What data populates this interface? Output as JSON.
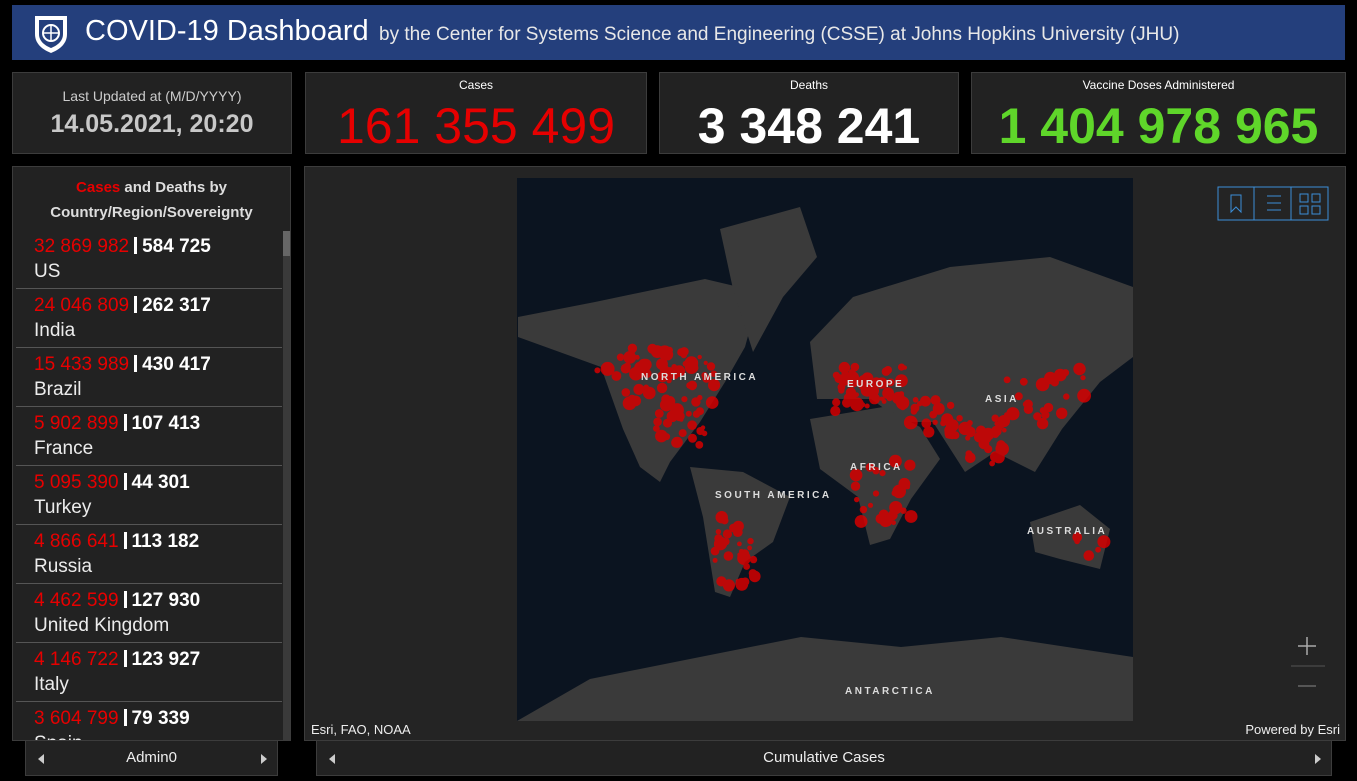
{
  "header": {
    "title": "COVID-19 Dashboard",
    "subtitle": "by the Center for Systems Science and Engineering (CSSE) at Johns Hopkins University (JHU)"
  },
  "updated": {
    "label": "Last Updated at (M/D/YYYY)",
    "value": "14.05.2021, 20:20"
  },
  "stats": {
    "cases": {
      "label": "Cases",
      "value": "161 355 499"
    },
    "deaths": {
      "label": "Deaths",
      "value": "3 348 241"
    },
    "vaccines": {
      "label": "Vaccine Doses Administered",
      "value": "1 404 978 965"
    }
  },
  "list": {
    "title_cases": "Cases",
    "title_rest": "and Deaths by Country/Region/Sovereignty",
    "rows": [
      {
        "cases": "32 869 982",
        "deaths": "584 725",
        "country": "US"
      },
      {
        "cases": "24 046 809",
        "deaths": "262 317",
        "country": "India"
      },
      {
        "cases": "15 433 989",
        "deaths": "430 417",
        "country": "Brazil"
      },
      {
        "cases": "5 902 899",
        "deaths": "107 413",
        "country": "France"
      },
      {
        "cases": "5 095 390",
        "deaths": "44 301",
        "country": "Turkey"
      },
      {
        "cases": "4 866 641",
        "deaths": "113 182",
        "country": "Russia"
      },
      {
        "cases": "4 462 599",
        "deaths": "127 930",
        "country": "United Kingdom"
      },
      {
        "cases": "4 146 722",
        "deaths": "123 927",
        "country": "Italy"
      },
      {
        "cases": "3 604 799",
        "deaths": "79 339",
        "country": "Spain"
      }
    ]
  },
  "map": {
    "labels": {
      "north_america": "NORTH AMERICA",
      "south_america": "SOUTH AMERICA",
      "europe": "EUROPE",
      "africa": "AFRICA",
      "asia": "ASIA",
      "australia": "AUSTRALIA",
      "antarctica": "ANTARCTICA"
    },
    "attribution": "Esri, FAO, NOAA",
    "powered": "Powered by Esri"
  },
  "tabs": {
    "left": "Admin0",
    "right": "Cumulative Cases"
  }
}
